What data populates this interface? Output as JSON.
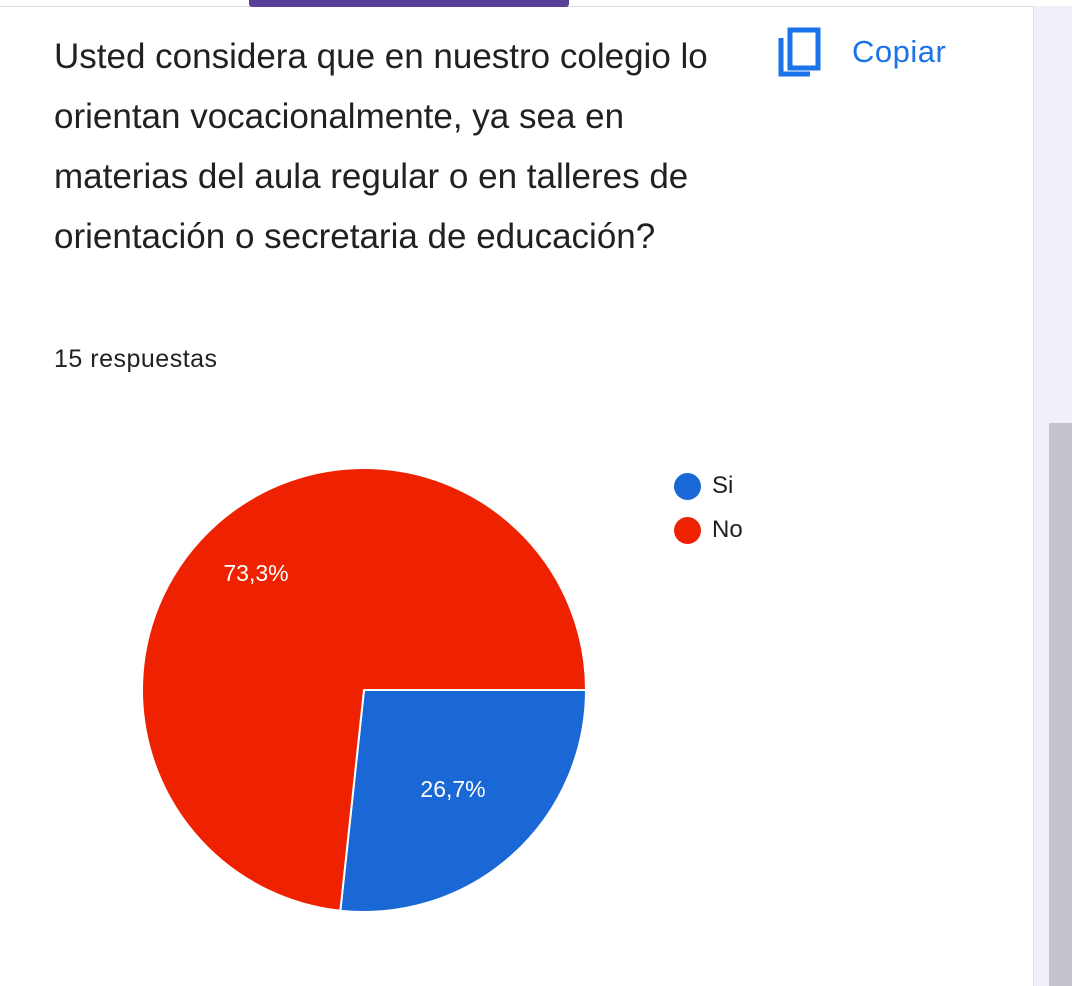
{
  "header": {
    "question": "Usted considera que en nuestro colegio lo orientan vocacionalmente, ya sea en materias del aula regular o en talleres de orientación o secretaria de educación?",
    "responses": "15 respuestas",
    "copy_label": "Copiar",
    "copy_icon": "copy-icon"
  },
  "colors": {
    "accent": "#5a3f99",
    "link": "#1a73e8",
    "si": "#1a68d5",
    "no": "#ee2200"
  },
  "chart_data": {
    "type": "pie",
    "slices": [
      {
        "label": "Si",
        "value": 26.7,
        "display": "26,7%",
        "color": "#1a68d5"
      },
      {
        "label": "No",
        "value": 73.3,
        "display": "73,3%",
        "color": "#ee2200"
      }
    ],
    "legend_position": "right"
  }
}
